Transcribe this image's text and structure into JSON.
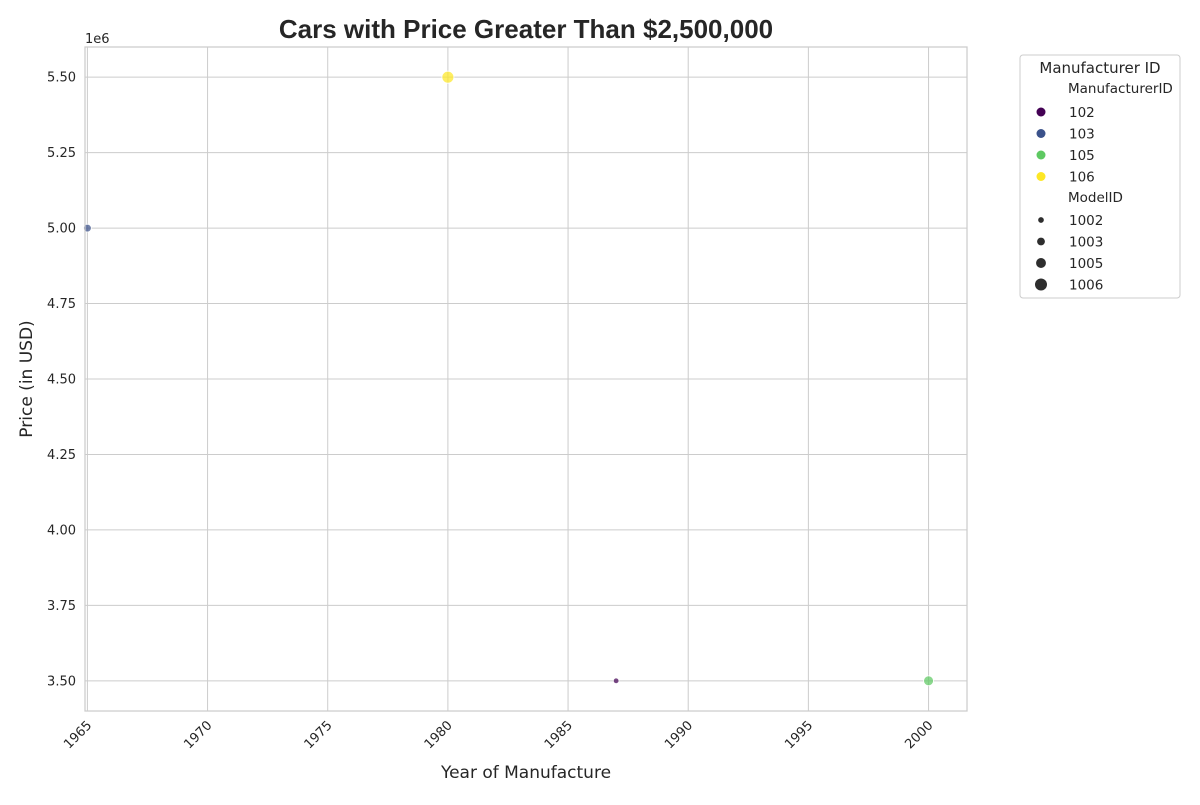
{
  "chart_data": {
    "type": "scatter",
    "title": "Cars with Price Greater Than $2,500,000",
    "xlabel": "Year of Manufacture",
    "ylabel": "Price (in USD)",
    "y_offset_label": "1e6",
    "xlim": [
      1964.9,
      2001.6
    ],
    "ylim": [
      3400000,
      5600000
    ],
    "xticks": [
      1965,
      1970,
      1975,
      1980,
      1985,
      1990,
      1995,
      2000
    ],
    "xtick_labels": [
      "1965",
      "1970",
      "1975",
      "1980",
      "1985",
      "1990",
      "1995",
      "2000"
    ],
    "yticks": [
      3500000,
      3750000,
      4000000,
      4250000,
      4500000,
      4750000,
      5000000,
      5250000,
      5500000
    ],
    "ytick_labels": [
      "3.50",
      "3.75",
      "4.00",
      "4.25",
      "4.50",
      "4.75",
      "5.00",
      "5.25",
      "5.50"
    ],
    "grid": true,
    "legend_position": "outside-top-right",
    "legend": {
      "title": "Manufacturer ID",
      "hue_title": "ManufacturerID",
      "hue_entries": [
        {
          "label": "102",
          "color": "#440154"
        },
        {
          "label": "103",
          "color": "#3b528b"
        },
        {
          "label": "105",
          "color": "#5ec962"
        },
        {
          "label": "106",
          "color": "#fde725"
        }
      ],
      "size_title": "ModelID",
      "size_entries": [
        {
          "label": "1002",
          "size_rank": 1
        },
        {
          "label": "1003",
          "size_rank": 2
        },
        {
          "label": "1005",
          "size_rank": 3
        },
        {
          "label": "1006",
          "size_rank": 4
        }
      ]
    },
    "points": [
      {
        "x": 1965,
        "y": 5000000,
        "manufacturer_id": "103",
        "model_id": "1003"
      },
      {
        "x": 1980,
        "y": 5500000,
        "manufacturer_id": "106",
        "model_id": "1006"
      },
      {
        "x": 1987,
        "y": 3500000,
        "manufacturer_id": "102",
        "model_id": "1002"
      },
      {
        "x": 2000,
        "y": 3500000,
        "manufacturer_id": "105",
        "model_id": "1005"
      }
    ]
  }
}
